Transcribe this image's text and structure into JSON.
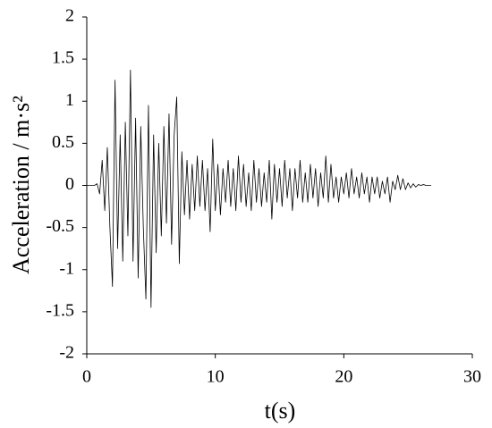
{
  "chart_data": {
    "type": "line",
    "x_label": "t(s)",
    "y_label": "Acceleration / m·s²",
    "color": "#000000",
    "grid": false,
    "xlim": [
      0,
      30
    ],
    "xticks": [
      0,
      10,
      20,
      30
    ],
    "ylim": [
      -2,
      2
    ],
    "yticks": [
      -2,
      -1.5,
      -1,
      -0.5,
      0,
      0.5,
      1,
      1.5,
      2
    ],
    "x": [
      0,
      0.2,
      0.4,
      0.6,
      0.8,
      1,
      1.2,
      1.4,
      1.6,
      1.8,
      2,
      2.2,
      2.4,
      2.6,
      2.8,
      3,
      3.2,
      3.4,
      3.6,
      3.8,
      4,
      4.2,
      4.4,
      4.6,
      4.8,
      5,
      5.2,
      5.4,
      5.6,
      5.8,
      6,
      6.2,
      6.4,
      6.6,
      6.8,
      7,
      7.2,
      7.4,
      7.6,
      7.8,
      8,
      8.2,
      8.4,
      8.6,
      8.8,
      9,
      9.2,
      9.4,
      9.6,
      9.8,
      10,
      10.2,
      10.4,
      10.6,
      10.8,
      11,
      11.2,
      11.4,
      11.6,
      11.8,
      12,
      12.2,
      12.4,
      12.6,
      12.8,
      13,
      13.2,
      13.4,
      13.6,
      13.8,
      14,
      14.2,
      14.4,
      14.6,
      14.8,
      15,
      15.2,
      15.4,
      15.6,
      15.8,
      16,
      16.2,
      16.4,
      16.6,
      16.8,
      17,
      17.2,
      17.4,
      17.6,
      17.8,
      18,
      18.2,
      18.4,
      18.6,
      18.8,
      19,
      19.2,
      19.4,
      19.6,
      19.8,
      20,
      20.2,
      20.4,
      20.6,
      20.8,
      21,
      21.2,
      21.4,
      21.6,
      21.8,
      22,
      22.2,
      22.4,
      22.6,
      22.8,
      23,
      23.2,
      23.4,
      23.6,
      23.8,
      24,
      24.2,
      24.4,
      24.6,
      24.8,
      25,
      25.2,
      25.4,
      25.6,
      25.8,
      26,
      26.2,
      26.4,
      26.6,
      26.8
    ],
    "values": [
      0,
      0,
      0,
      0,
      0.02,
      -0.1,
      0.3,
      -0.3,
      0.45,
      -0.5,
      -1.2,
      1.25,
      -0.75,
      0.6,
      -0.9,
      0.75,
      -0.6,
      1.37,
      -0.9,
      0.8,
      -1.1,
      0.7,
      -0.5,
      -1.35,
      0.95,
      -1.45,
      0.6,
      -0.8,
      0.5,
      -0.6,
      0.7,
      -0.45,
      0.85,
      -0.7,
      0.6,
      1.05,
      -0.93,
      0.4,
      -0.35,
      0.3,
      -0.4,
      0.25,
      -0.3,
      0.35,
      -0.25,
      0.3,
      -0.3,
      0.2,
      -0.55,
      0.55,
      -0.3,
      0.25,
      -0.35,
      0.2,
      -0.2,
      0.3,
      -0.25,
      0.2,
      -0.3,
      0.35,
      -0.2,
      0.25,
      -0.25,
      0.15,
      -0.3,
      0.3,
      -0.2,
      0.2,
      -0.25,
      0.15,
      -0.2,
      0.3,
      -0.4,
      0.25,
      -0.2,
      0.2,
      -0.25,
      0.3,
      -0.15,
      0.2,
      -0.3,
      0.2,
      -0.15,
      0.3,
      -0.2,
      0.15,
      -0.2,
      0.25,
      -0.15,
      0.2,
      -0.25,
      0.15,
      -0.15,
      0.35,
      -0.2,
      0.25,
      -0.15,
      0.1,
      -0.2,
      0.1,
      -0.1,
      0.15,
      -0.15,
      0.2,
      -0.1,
      0.1,
      -0.15,
      0.15,
      -0.1,
      0.1,
      -0.2,
      0.1,
      -0.1,
      0.1,
      -0.15,
      0.05,
      -0.1,
      0.1,
      -0.2,
      0.05,
      -0.05,
      0.12,
      -0.05,
      0.08,
      -0.05,
      0.03,
      -0.03,
      0.02,
      -0.02,
      0.01,
      0,
      0.01,
      0,
      0,
      0
    ]
  }
}
